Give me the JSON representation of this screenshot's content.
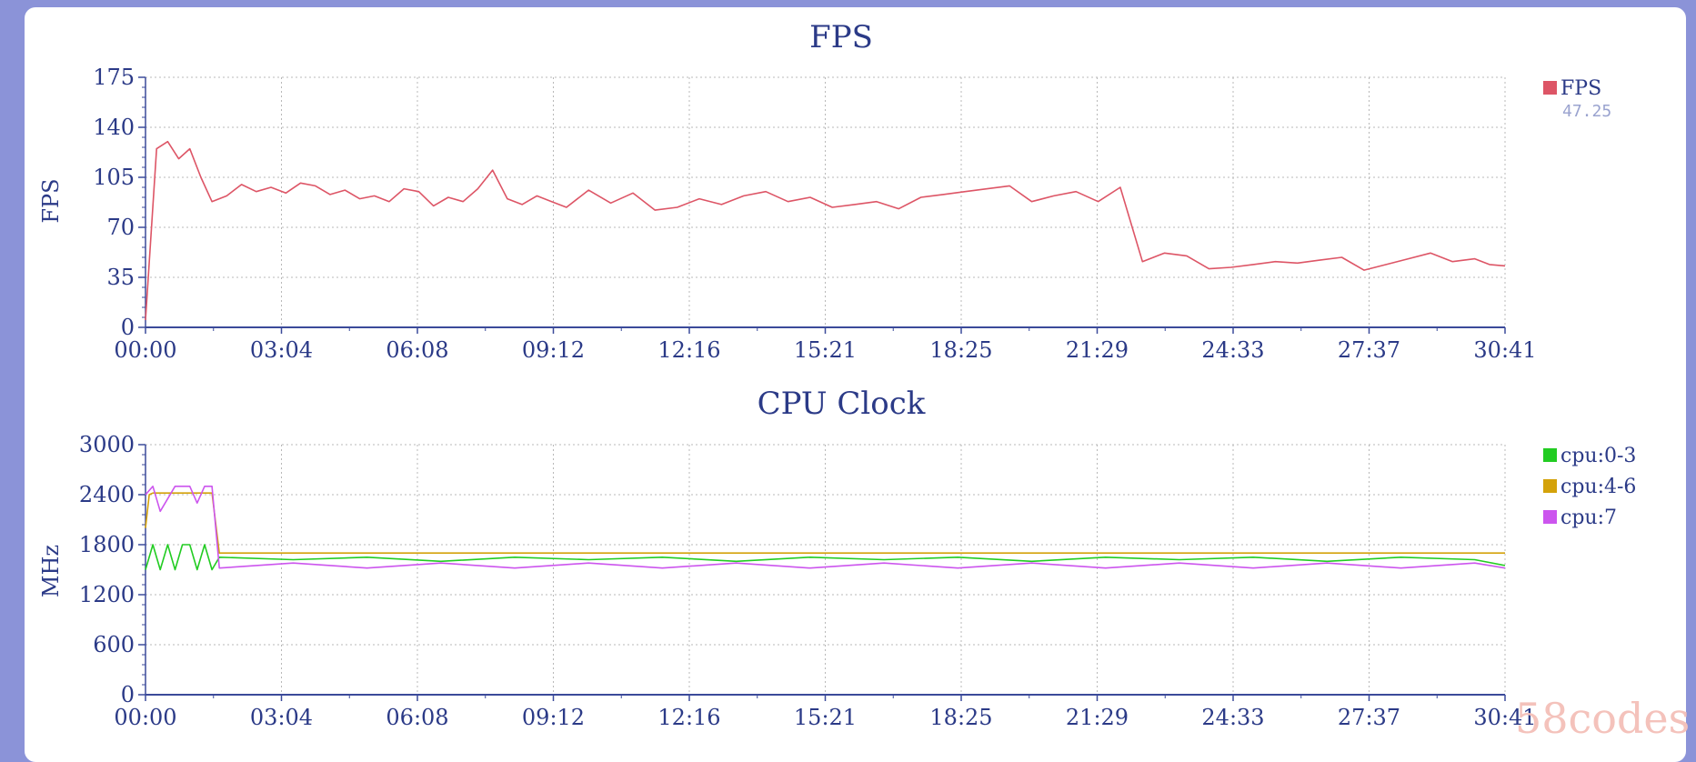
{
  "chart_data": [
    {
      "type": "line",
      "title": "FPS",
      "ylabel": "FPS",
      "xlabel": "",
      "x_ticks": [
        "00:00",
        "03:04",
        "06:08",
        "09:12",
        "12:16",
        "15:21",
        "18:25",
        "21:29",
        "24:33",
        "27:37",
        "30:41"
      ],
      "y_ticks": [
        "0",
        "35",
        "70",
        "105",
        "140",
        "175"
      ],
      "ylim": [
        0,
        175
      ],
      "xlim_seconds": [
        0,
        1841
      ],
      "grid": true,
      "legend_placement": "right",
      "series": [
        {
          "name": "FPS",
          "color": "#dd5566",
          "legend_value": "47.25",
          "x_seconds": [
            0,
            15,
            30,
            45,
            60,
            75,
            90,
            110,
            130,
            150,
            170,
            190,
            210,
            230,
            250,
            270,
            290,
            310,
            330,
            350,
            370,
            390,
            410,
            430,
            450,
            470,
            490,
            510,
            530,
            550,
            570,
            600,
            630,
            660,
            690,
            720,
            750,
            780,
            810,
            840,
            870,
            900,
            930,
            960,
            990,
            1020,
            1050,
            1080,
            1110,
            1140,
            1170,
            1200,
            1230,
            1260,
            1290,
            1320,
            1350,
            1380,
            1410,
            1440,
            1470,
            1500,
            1530,
            1560,
            1590,
            1620,
            1650,
            1680,
            1710,
            1740,
            1770,
            1800,
            1820,
            1841
          ],
          "values": [
            5,
            125,
            130,
            118,
            125,
            105,
            88,
            92,
            100,
            95,
            98,
            94,
            101,
            99,
            93,
            96,
            90,
            92,
            88,
            97,
            95,
            85,
            91,
            88,
            97,
            110,
            90,
            86,
            92,
            88,
            84,
            96,
            87,
            94,
            82,
            84,
            90,
            86,
            92,
            95,
            88,
            91,
            84,
            86,
            88,
            83,
            91,
            93,
            95,
            97,
            99,
            88,
            92,
            95,
            88,
            98,
            46,
            52,
            50,
            41,
            42,
            44,
            46,
            45,
            47,
            49,
            40,
            44,
            48,
            52,
            46,
            48,
            44,
            43
          ]
        }
      ]
    },
    {
      "type": "line",
      "title": "CPU Clock",
      "ylabel": "MHz",
      "xlabel": "",
      "x_ticks": [
        "00:00",
        "03:04",
        "06:08",
        "09:12",
        "12:16",
        "15:21",
        "18:25",
        "21:29",
        "24:33",
        "27:37",
        "30:41"
      ],
      "y_ticks": [
        "0",
        "600",
        "1200",
        "1800",
        "2400",
        "3000"
      ],
      "ylim": [
        0,
        3000
      ],
      "xlim_seconds": [
        0,
        1841
      ],
      "grid": true,
      "legend_placement": "right",
      "series": [
        {
          "name": "cpu:0-3",
          "color": "#22cc22",
          "x_seconds": [
            0,
            10,
            20,
            30,
            40,
            50,
            60,
            70,
            80,
            90,
            100,
            200,
            300,
            400,
            500,
            600,
            700,
            800,
            900,
            1000,
            1100,
            1200,
            1300,
            1400,
            1500,
            1600,
            1700,
            1800,
            1841
          ],
          "values": [
            1500,
            1800,
            1500,
            1800,
            1500,
            1800,
            1800,
            1500,
            1800,
            1500,
            1650,
            1620,
            1650,
            1600,
            1650,
            1620,
            1650,
            1600,
            1650,
            1620,
            1650,
            1600,
            1650,
            1620,
            1650,
            1600,
            1650,
            1620,
            1550
          ]
        },
        {
          "name": "cpu:4-6",
          "color": "#d4a20a",
          "x_seconds": [
            0,
            5,
            10,
            80,
            90,
            100,
            1841
          ],
          "values": [
            2000,
            2400,
            2420,
            2420,
            2420,
            1700,
            1700
          ]
        },
        {
          "name": "cpu:7",
          "color": "#cc55ee",
          "x_seconds": [
            0,
            10,
            20,
            40,
            60,
            70,
            80,
            90,
            100,
            200,
            300,
            400,
            500,
            600,
            700,
            800,
            900,
            1000,
            1100,
            1200,
            1300,
            1400,
            1500,
            1600,
            1700,
            1800,
            1841
          ],
          "values": [
            2400,
            2500,
            2200,
            2500,
            2500,
            2300,
            2500,
            2500,
            1520,
            1580,
            1520,
            1580,
            1520,
            1580,
            1520,
            1580,
            1520,
            1580,
            1520,
            1580,
            1520,
            1580,
            1520,
            1580,
            1520,
            1580,
            1520
          ]
        }
      ]
    }
  ],
  "watermark": "58codes"
}
